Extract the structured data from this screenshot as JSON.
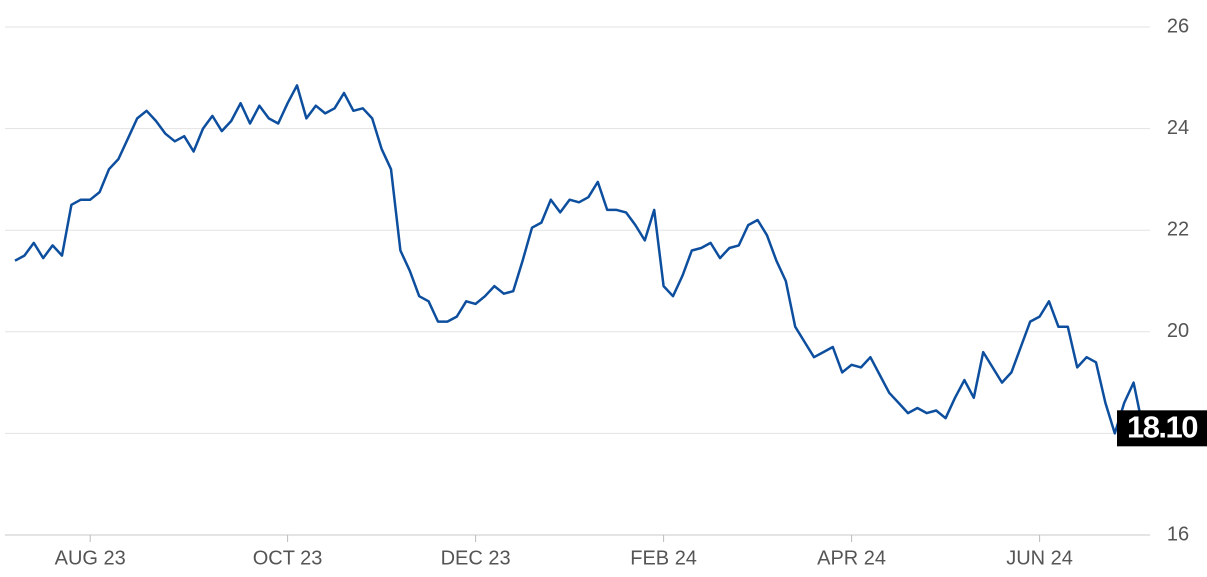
{
  "chart_data": {
    "type": "line",
    "color": "#0d4f9e",
    "grid": true,
    "categories": [
      null,
      null,
      null,
      null,
      null,
      null,
      null,
      null,
      "AUG 23",
      null,
      null,
      null,
      null,
      null,
      null,
      null,
      null,
      null,
      null,
      null,
      null,
      null,
      null,
      null,
      null,
      null,
      null,
      null,
      null,
      "OCT 23",
      null,
      null,
      null,
      null,
      null,
      null,
      null,
      null,
      null,
      null,
      null,
      null,
      null,
      null,
      null,
      null,
      null,
      null,
      null,
      "DEC 23",
      null,
      null,
      null,
      null,
      null,
      null,
      null,
      null,
      null,
      null,
      null,
      null,
      null,
      null,
      null,
      null,
      null,
      null,
      null,
      "FEB 24",
      null,
      null,
      null,
      null,
      null,
      null,
      null,
      null,
      null,
      null,
      null,
      null,
      null,
      null,
      null,
      null,
      null,
      null,
      null,
      "APR 24",
      null,
      null,
      null,
      null,
      null,
      null,
      null,
      null,
      null,
      null,
      null,
      null,
      null,
      null,
      null,
      null,
      null,
      null,
      null,
      "JUN 24",
      null,
      null,
      null,
      null,
      null,
      null,
      null,
      null,
      null,
      null,
      null
    ],
    "values": [
      21.4,
      21.5,
      21.75,
      21.45,
      21.7,
      21.5,
      22.5,
      22.6,
      22.6,
      22.75,
      23.2,
      23.4,
      23.8,
      24.2,
      24.35,
      24.15,
      23.9,
      23.75,
      23.85,
      23.55,
      24.0,
      24.25,
      23.95,
      24.15,
      24.5,
      24.1,
      24.45,
      24.2,
      24.1,
      24.5,
      24.85,
      24.2,
      24.45,
      24.3,
      24.4,
      24.7,
      24.35,
      24.4,
      24.2,
      23.6,
      23.2,
      21.6,
      21.2,
      20.7,
      20.6,
      20.2,
      20.2,
      20.3,
      20.6,
      20.55,
      20.7,
      20.9,
      20.75,
      20.8,
      21.4,
      22.05,
      22.15,
      22.6,
      22.35,
      22.6,
      22.55,
      22.65,
      22.95,
      22.4,
      22.4,
      22.35,
      22.1,
      21.8,
      22.4,
      20.9,
      20.7,
      21.1,
      21.6,
      21.65,
      21.75,
      21.45,
      21.65,
      21.7,
      22.1,
      22.2,
      21.9,
      21.4,
      21.0,
      20.1,
      19.8,
      19.5,
      19.6,
      19.7,
      19.2,
      19.35,
      19.3,
      19.5,
      19.15,
      18.8,
      18.6,
      18.4,
      18.5,
      18.4,
      18.45,
      18.3,
      18.7,
      19.05,
      18.7,
      19.6,
      19.3,
      19.0,
      19.2,
      19.7,
      20.2,
      20.3,
      20.6,
      20.1,
      20.1,
      19.3,
      19.5,
      19.4,
      18.6,
      18.0,
      18.6,
      19.0,
      18.1
    ],
    "value_labels": [
      null,
      null,
      null,
      null,
      null,
      null,
      null,
      null,
      null,
      null,
      null,
      null,
      null,
      null,
      null,
      null,
      null,
      null,
      null,
      null,
      null,
      null,
      null,
      null,
      null,
      null,
      null,
      null,
      null,
      null,
      null,
      null,
      null,
      null,
      null,
      null,
      null,
      null,
      null,
      null,
      null,
      null,
      null,
      null,
      null,
      null,
      null,
      null,
      null,
      null,
      null,
      null,
      null,
      null,
      null,
      null,
      null,
      null,
      null,
      null,
      null,
      null,
      null,
      null,
      null,
      null,
      null,
      null,
      null,
      null,
      null,
      null,
      null,
      null,
      null,
      null,
      null,
      null,
      null,
      null,
      null,
      null,
      null,
      null,
      null,
      null,
      null,
      null,
      null,
      null,
      null,
      null,
      null,
      null,
      null,
      null,
      null,
      null,
      null,
      null,
      null,
      null,
      null,
      null,
      null,
      null,
      null,
      null,
      null,
      null,
      null,
      null,
      null,
      null,
      null,
      null,
      null,
      null,
      null,
      null,
      "18.10"
    ],
    "ylim": [
      16,
      26
    ],
    "yticks": [
      16,
      18,
      20,
      22,
      24,
      26
    ]
  }
}
